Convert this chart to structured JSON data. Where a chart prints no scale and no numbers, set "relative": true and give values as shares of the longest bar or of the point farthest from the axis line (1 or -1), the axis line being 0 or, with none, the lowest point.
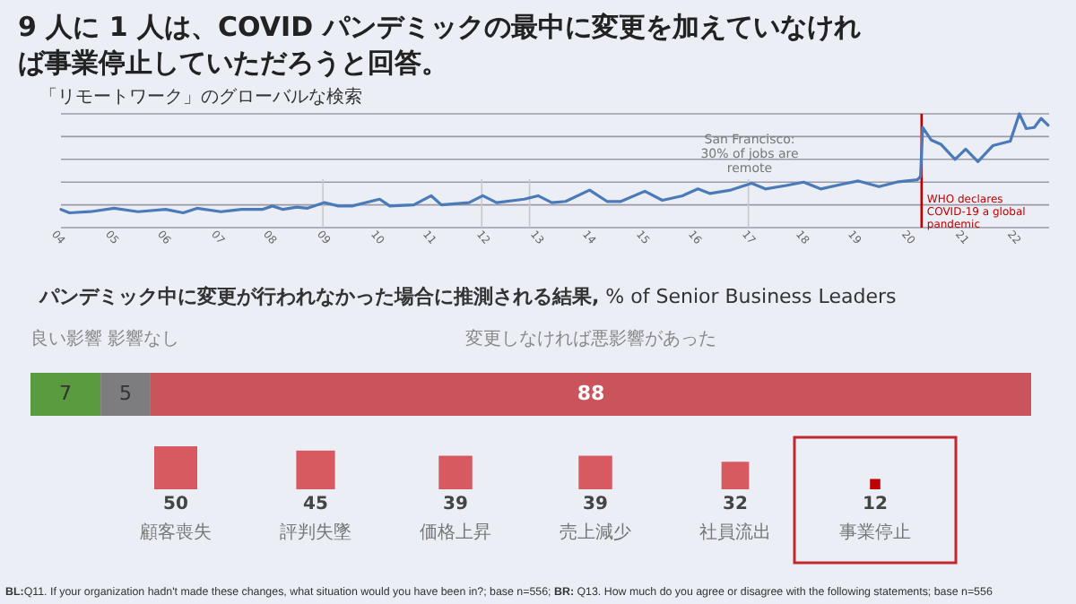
{
  "chart_data": [
    {
      "type": "line",
      "title": "9 人に 1 人は、COVID パンデミックの最中に変更を加えていなければ事業停止していただろうと回答。",
      "subtitle": "「リモートワーク」のグローバルな検索",
      "relative": true,
      "color": "#4a7ab8",
      "grid": "y",
      "x": [
        2004.0,
        2004.16,
        2004.55,
        2005.0,
        2005.45,
        2005.97,
        2006.3,
        2006.56,
        2007.01,
        2007.4,
        2007.79,
        2007.98,
        2008.18,
        2008.44,
        2008.63,
        2008.96,
        2009.22,
        2009.48,
        2009.74,
        2010.0,
        2010.19,
        2010.64,
        2010.97,
        2011.16,
        2011.68,
        2011.94,
        2012.2,
        2012.72,
        2012.98,
        2013.24,
        2013.5,
        2013.95,
        2014.28,
        2014.54,
        2014.99,
        2015.32,
        2015.7,
        2015.99,
        2016.22,
        2016.61,
        2017.0,
        2017.26,
        2017.65,
        2017.98,
        2018.3,
        2018.69,
        2019.01,
        2019.4,
        2019.73,
        2020.12,
        2020.18,
        2020.22,
        2020.38,
        2020.57,
        2020.83,
        2021.03,
        2021.26,
        2021.54,
        2021.87,
        2022.04,
        2022.17,
        2022.32,
        2022.45,
        2022.58
      ],
      "values": [
        0.16,
        0.13,
        0.14,
        0.17,
        0.14,
        0.16,
        0.13,
        0.17,
        0.14,
        0.16,
        0.16,
        0.19,
        0.16,
        0.18,
        0.17,
        0.22,
        0.19,
        0.19,
        0.22,
        0.25,
        0.19,
        0.2,
        0.28,
        0.2,
        0.22,
        0.28,
        0.22,
        0.25,
        0.28,
        0.22,
        0.23,
        0.33,
        0.23,
        0.23,
        0.32,
        0.24,
        0.28,
        0.34,
        0.3,
        0.33,
        0.39,
        0.34,
        0.37,
        0.4,
        0.34,
        0.38,
        0.41,
        0.36,
        0.4,
        0.42,
        0.45,
        0.88,
        0.77,
        0.73,
        0.6,
        0.69,
        0.58,
        0.72,
        0.76,
        1.0,
        0.87,
        0.88,
        0.96,
        0.9
      ],
      "xlim": [
        2004,
        2022.6
      ],
      "annotations": [
        "San Francisco: 30% of jobs are remote"
      ],
      "xticks": [
        {
          "value": 2004,
          "label": "04"
        },
        {
          "value": 2005,
          "label": "05"
        },
        {
          "value": 2006,
          "label": "06"
        },
        {
          "value": 2007,
          "label": "07"
        },
        {
          "value": 2008,
          "label": "08"
        },
        {
          "value": 2009,
          "label": "09"
        },
        {
          "value": 2010,
          "label": "10"
        },
        {
          "value": 2011,
          "label": "11"
        },
        {
          "value": 2012,
          "label": "12"
        },
        {
          "value": 2013,
          "label": "13"
        },
        {
          "value": 2014,
          "label": "14"
        },
        {
          "value": 2015,
          "label": "15"
        },
        {
          "value": 2016,
          "label": "16"
        },
        {
          "value": 2017,
          "label": "17"
        },
        {
          "value": 2018,
          "label": "18"
        },
        {
          "value": 2019,
          "label": "19"
        },
        {
          "value": 2020,
          "label": "20"
        },
        {
          "value": 2021,
          "label": "21"
        },
        {
          "value": 2022,
          "label": "22"
        }
      ],
      "ref_lines": [
        {
          "axis": "x",
          "value": 2008.93,
          "color": "#c8c8cc"
        },
        {
          "axis": "x",
          "value": 2011.92,
          "color": "#c8c8cc"
        },
        {
          "axis": "x",
          "value": 2012.82,
          "color": "#c8c8cc"
        },
        {
          "axis": "x",
          "value": 2016.94,
          "color": "#c8c8cc"
        },
        {
          "axis": "x",
          "value": 2020.2,
          "label": "WHO declares COVID-19 a global pandemic",
          "color": "#c00000"
        }
      ]
    },
    {
      "type": "bar",
      "title": "**パンデミック中に変更が行われなかった場合に推測される結果,** % of Senior Business Leaders",
      "stacked": true,
      "orientation": "horizontal",
      "data_labels": true,
      "categories": [
        null
      ],
      "series": [
        {
          "name": "良い影響",
          "color": "#5b9b3f",
          "values": [
            7
          ]
        },
        {
          "name": "影響なし",
          "color": "#7d7d80",
          "values": [
            5
          ]
        },
        {
          "name": "変更しなければ悪影響があった",
          "color": "#c9545b",
          "values": [
            88
          ]
        }
      ]
    },
    {
      "type": "other",
      "data_labels": true,
      "categories": [
        "顧客喪失",
        "評判失墜",
        "価格上昇",
        "売上減少",
        "社員流出",
        "事業停止"
      ],
      "values": [
        50,
        45,
        39,
        39,
        32,
        12
      ],
      "colors": [
        "#d65a60",
        "#d65a60",
        "#d65a60",
        "#d65a60",
        "#d65a60",
        "#c00000"
      ],
      "annotations": [
        "**BL:**Q11. If your organization hadn't made these changes, what situation would you have been in?; base n=556; **BR:** Q13. How much do you agree or disagree with the following statements; base n=556"
      ]
    }
  ]
}
